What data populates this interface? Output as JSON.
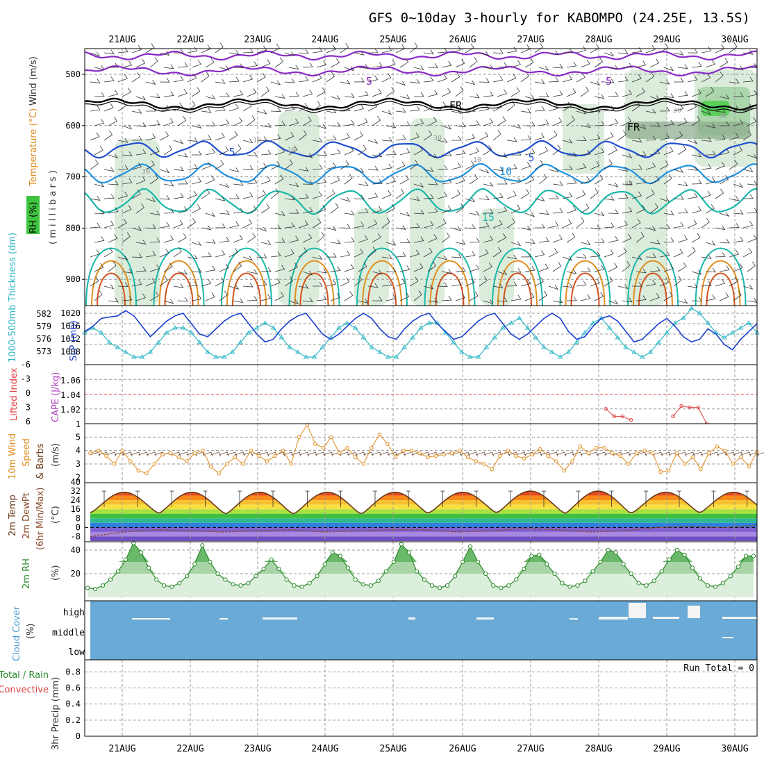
{
  "title": "GFS 0~10day 3-hourly for KABOMPO (24.25E, 13.5S)",
  "dates": [
    "21AUG",
    "22AUG",
    "23AUG",
    "24AUG",
    "25AUG",
    "26AUG",
    "27AUG",
    "28AUG",
    "29AUG",
    "30AUG"
  ],
  "colors": {
    "grid": "#9a9a9a",
    "temp_neg": "#8a2bc8",
    "temp_pos": "#1f4fd0",
    "temp_10": "#1e90e0",
    "temp_15": "#18b8a8",
    "temp_20": "#e09020",
    "temp_25": "#d4501a",
    "rh_fill": "#cfe6cf",
    "fr_line": "#000000",
    "slp": "#1a3fd0",
    "thickness": "#30b8c8",
    "lifted": "#e04040",
    "cape": "#b040c0",
    "wind10": "#e08a1a",
    "t2m": "#6b3a1a",
    "dewpt": "#8a4a2a",
    "rh2m": "#2a8a2a",
    "cloud": "#6aaad6"
  },
  "panels": {
    "upper": {
      "ylabel_rh": "RH (%)",
      "ylabel_temp": "Temperature (°C)",
      "ylabel_wind": "Wind (m/s)",
      "ylabel_mb": "( m i l l i b a r s )",
      "yticks": [
        "500",
        "600",
        "700",
        "800",
        "900"
      ],
      "contour_labels": [
        "-5",
        "-5",
        "FR",
        "FR",
        "5",
        "5",
        "10",
        "15",
        "10",
        "30",
        "30",
        "10",
        "30",
        "10",
        "30",
        "30"
      ]
    },
    "slp": {
      "ylabel_thickness": "1000-500mb Thickness (dm)",
      "ylabel_slp": "SLP (mb)",
      "left_ticks": [
        "582",
        "579",
        "576",
        "573"
      ],
      "right_ticks": [
        "1020",
        "1016",
        "1012",
        "1008"
      ]
    },
    "cape": {
      "ylabel_li": "Lifted Index",
      "ylabel_cape": "CAPE (J/kg)",
      "left_ticks": [
        "-6",
        "-3",
        "0",
        "3",
        "6"
      ],
      "right_ticks": [
        "1.06",
        "1.04",
        "1.02",
        "1"
      ]
    },
    "wind10m": {
      "ylabel1": "10m Wind",
      "ylabel2": "Speed",
      "ylabel3": "& Barbs",
      "unit": "(m/s)",
      "yticks": [
        "5",
        "4",
        "3",
        "2"
      ]
    },
    "temp2m": {
      "ylabel1": "2m Temp",
      "ylabel2": "2m DewPt",
      "ylabel3": "(6hr Min/Max)",
      "unit": "(°C)",
      "yticks": [
        "40",
        "32",
        "24",
        "16",
        "8",
        "0",
        "-8"
      ]
    },
    "rh2m": {
      "ylabel": "2m RH",
      "unit": "(%)",
      "yticks": [
        "40",
        "20"
      ]
    },
    "cloud": {
      "ylabel": "Cloud Cover",
      "unit": "(%)",
      "levels": [
        "high",
        "middle",
        "low"
      ]
    },
    "precip": {
      "ylabel": "3hr Precip (mm)",
      "legend1": "Total / Rain",
      "legend2": "Convective",
      "run_total": "Run Total = 0",
      "yticks": [
        "0.8",
        "0.6",
        "0.4",
        "0.2",
        "0"
      ]
    }
  },
  "chart_data": [
    {
      "type": "line",
      "name": "slp",
      "x_dates": [
        "21AUG",
        "22AUG",
        "23AUG",
        "24AUG",
        "25AUG",
        "26AUG",
        "27AUG",
        "28AUG",
        "29AUG",
        "30AUG"
      ],
      "slp_mb": [
        1013,
        1015,
        1018,
        1018.5,
        1019,
        1021,
        1019,
        1015,
        1011,
        1014,
        1017,
        1019,
        1020,
        1016,
        1012,
        1011,
        1014,
        1017,
        1019,
        1020,
        1016,
        1012,
        1009,
        1010,
        1014,
        1017,
        1019,
        1020,
        1016,
        1012,
        1010,
        1012,
        1015,
        1018,
        1020,
        1018,
        1014,
        1011,
        1010,
        1014,
        1017,
        1019,
        1020,
        1016,
        1013,
        1010,
        1011,
        1014,
        1017,
        1019,
        1020,
        1016,
        1012,
        1010,
        1012,
        1015,
        1018,
        1020,
        1018,
        1013,
        1010,
        1011,
        1015,
        1018,
        1019,
        1017,
        1013,
        1009,
        1010,
        1013,
        1016,
        1018,
        1015,
        1011,
        1009,
        1010,
        1014,
        1012,
        1008,
        1006,
        1010,
        1013,
        1016
      ],
      "thickness_dm": [
        578,
        579,
        578,
        576,
        575,
        574,
        573,
        573,
        574,
        576,
        578,
        579,
        579,
        578,
        576,
        574,
        573,
        573,
        574,
        576,
        578,
        579,
        580,
        579,
        577,
        575,
        574,
        573,
        573,
        575,
        577,
        579,
        580,
        579,
        577,
        575,
        574,
        573,
        573,
        575,
        577,
        579,
        580,
        580,
        578,
        576,
        574,
        573,
        573,
        575,
        577,
        579,
        580,
        581,
        579,
        577,
        575,
        574,
        573,
        574,
        576,
        578,
        580,
        581,
        579,
        577,
        575,
        574,
        573,
        574,
        576,
        578,
        580,
        581,
        583,
        582,
        580,
        578,
        577,
        578,
        579,
        580,
        578
      ]
    },
    {
      "type": "line",
      "name": "lifted_index",
      "segments": [
        {
          "x_idx": [
            62,
            63,
            64,
            65
          ],
          "cape": [
            1.02,
            1.01,
            1.01,
            1.005
          ]
        },
        {
          "x_idx": [
            70,
            71,
            72,
            73,
            74
          ],
          "cape": [
            1.01,
            1.024,
            1.022,
            1.022,
            1.0
          ]
        }
      ]
    },
    {
      "type": "line",
      "name": "wind10m_speed",
      "values": [
        3.8,
        4.0,
        3.6,
        3.0,
        4.0,
        3.2,
        2.5,
        2.3,
        3.0,
        3.7,
        3.8,
        3.5,
        3.2,
        3.8,
        4.0,
        2.8,
        2.3,
        3.0,
        3.5,
        3.0,
        4.0,
        3.6,
        3.2,
        3.6,
        4.0,
        3.0,
        5.0,
        5.9,
        4.5,
        4.2,
        5.0,
        3.8,
        4.2,
        3.5,
        3.0,
        4.2,
        5.2,
        4.5,
        3.5,
        4.0,
        4.0,
        3.8,
        3.5,
        3.6,
        3.7,
        3.8,
        4.0,
        3.5,
        3.2,
        3.0,
        2.6,
        3.6,
        4.0,
        3.6,
        3.4,
        3.7,
        4.1,
        3.6,
        3.2,
        2.5,
        3.2,
        4.3,
        3.8,
        4.2,
        4.2,
        3.8,
        3.6,
        3.0,
        3.8,
        4.0,
        3.8,
        2.4,
        2.5,
        3.8,
        3.0,
        3.5,
        2.6,
        3.8,
        4.3,
        4.0,
        3.0,
        3.5,
        2.8,
        3.9
      ],
      "ylim": [
        2,
        6
      ]
    },
    {
      "type": "area",
      "name": "temp2m",
      "max_c": [
        31,
        31,
        31,
        31,
        31,
        31,
        32,
        32,
        31,
        31,
        36
      ],
      "min_c": [
        13,
        12,
        12,
        12,
        12,
        13,
        13,
        12,
        13,
        13,
        20
      ],
      "dewpt_c": [
        -8,
        -4,
        -2,
        -3,
        -4,
        -3,
        -2,
        -4,
        -3,
        -2,
        -2,
        -4,
        -3,
        -1,
        -2,
        -4,
        -3,
        0,
        1,
        0,
        2
      ]
    },
    {
      "type": "area",
      "name": "rh2m",
      "values": [
        8,
        7,
        10,
        15,
        22,
        32,
        46,
        38,
        25,
        15,
        10,
        9,
        12,
        18,
        28,
        44,
        30,
        20,
        15,
        11,
        10,
        12,
        18,
        24,
        32,
        24,
        15,
        10,
        9,
        12,
        18,
        28,
        38,
        35,
        25,
        15,
        11,
        10,
        14,
        22,
        30,
        45,
        38,
        22,
        15,
        10,
        8,
        10,
        18,
        30,
        43,
        30,
        20,
        10,
        8,
        10,
        15,
        24,
        35,
        36,
        28,
        20,
        12,
        9,
        10,
        14,
        22,
        30,
        40,
        38,
        28,
        20,
        12,
        10,
        14,
        22,
        32,
        40,
        36,
        25,
        16,
        10,
        9,
        12,
        18,
        26,
        35,
        35
      ],
      "ylim": [
        0,
        50
      ]
    },
    {
      "type": "bar",
      "name": "cloud_cover",
      "levels": [
        "high",
        "middle",
        "low"
      ]
    },
    {
      "type": "bar",
      "name": "precip_3hr",
      "values": [],
      "ylim": [
        0,
        1
      ]
    }
  ]
}
